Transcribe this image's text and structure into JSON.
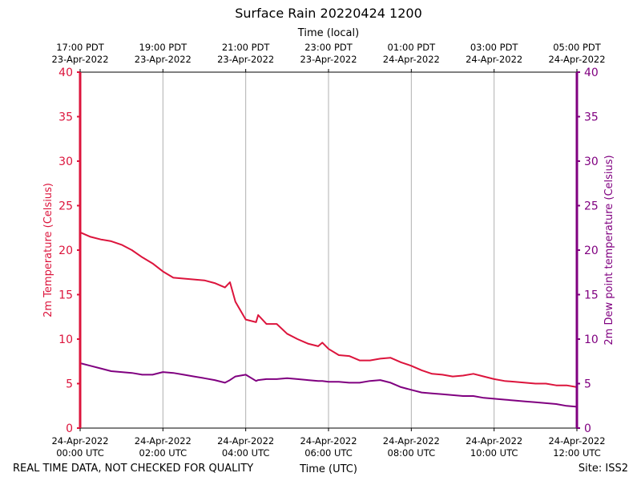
{
  "chart_data": {
    "type": "line",
    "title": "Surface Rain 20220424 1200",
    "top_xlabel": "Time (local)",
    "xlabel": "Time (UTC)",
    "ylabel_left": "2m Temperature (Celsius)",
    "ylabel_right": "2m Dew point temperature (Celsius)",
    "xlim_hours_utc": [
      0,
      12
    ],
    "ylim": [
      0,
      40
    ],
    "yticks": [
      0,
      5,
      10,
      15,
      20,
      25,
      30,
      35,
      40
    ],
    "grid": "vertical",
    "xticks_bottom": [
      {
        "h": 0,
        "l1": "24-Apr-2022",
        "l2": "00:00 UTC"
      },
      {
        "h": 2,
        "l1": "24-Apr-2022",
        "l2": "02:00 UTC"
      },
      {
        "h": 4,
        "l1": "24-Apr-2022",
        "l2": "04:00 UTC"
      },
      {
        "h": 6,
        "l1": "24-Apr-2022",
        "l2": "06:00 UTC"
      },
      {
        "h": 8,
        "l1": "24-Apr-2022",
        "l2": "08:00 UTC"
      },
      {
        "h": 10,
        "l1": "24-Apr-2022",
        "l2": "10:00 UTC"
      },
      {
        "h": 12,
        "l1": "24-Apr-2022",
        "l2": "12:00 UTC"
      }
    ],
    "xticks_top": [
      {
        "h": 0,
        "l1": "17:00 PDT",
        "l2": "23-Apr-2022"
      },
      {
        "h": 2,
        "l1": "19:00 PDT",
        "l2": "23-Apr-2022"
      },
      {
        "h": 4,
        "l1": "21:00 PDT",
        "l2": "23-Apr-2022"
      },
      {
        "h": 6,
        "l1": "23:00 PDT",
        "l2": "23-Apr-2022"
      },
      {
        "h": 8,
        "l1": "01:00 PDT",
        "l2": "24-Apr-2022"
      },
      {
        "h": 10,
        "l1": "03:00 PDT",
        "l2": "24-Apr-2022"
      },
      {
        "h": 12,
        "l1": "05:00 PDT",
        "l2": "24-Apr-2022"
      }
    ],
    "x_hours": [
      0,
      0.25,
      0.5,
      0.75,
      1,
      1.25,
      1.5,
      1.75,
      2,
      2.25,
      2.5,
      2.75,
      3,
      3.25,
      3.5,
      3.62,
      3.75,
      4,
      4.25,
      4.3,
      4.5,
      4.75,
      5,
      5.25,
      5.5,
      5.75,
      5.85,
      6,
      6.25,
      6.5,
      6.75,
      7,
      7.25,
      7.5,
      7.75,
      8,
      8.25,
      8.5,
      8.75,
      9,
      9.25,
      9.5,
      9.75,
      10,
      10.25,
      10.5,
      10.75,
      11,
      11.25,
      11.5,
      11.75,
      12
    ],
    "series": [
      {
        "name": "2m Temperature",
        "color": "#dc143c",
        "values": [
          22.0,
          21.5,
          21.2,
          21.0,
          20.6,
          20.0,
          19.2,
          18.5,
          17.6,
          16.9,
          16.8,
          16.7,
          16.6,
          16.3,
          15.8,
          16.4,
          14.2,
          12.2,
          11.9,
          12.7,
          11.7,
          11.7,
          10.6,
          10.0,
          9.5,
          9.2,
          9.6,
          8.9,
          8.2,
          8.1,
          7.6,
          7.6,
          7.8,
          7.9,
          7.4,
          7.0,
          6.5,
          6.1,
          6.0,
          5.8,
          5.9,
          6.1,
          5.8,
          5.5,
          5.3,
          5.2,
          5.1,
          5.0,
          5.0,
          4.8,
          4.8,
          4.6
        ]
      },
      {
        "name": "2m Dew point temperature",
        "color": "#800080",
        "values": [
          7.3,
          7.0,
          6.7,
          6.4,
          6.3,
          6.2,
          6.0,
          6.0,
          6.3,
          6.2,
          6.0,
          5.8,
          5.6,
          5.4,
          5.1,
          5.4,
          5.8,
          6.0,
          5.3,
          5.4,
          5.5,
          5.5,
          5.6,
          5.5,
          5.4,
          5.3,
          5.3,
          5.2,
          5.2,
          5.1,
          5.1,
          5.3,
          5.4,
          5.1,
          4.6,
          4.3,
          4.0,
          3.9,
          3.8,
          3.7,
          3.6,
          3.6,
          3.4,
          3.3,
          3.2,
          3.1,
          3.0,
          2.9,
          2.8,
          2.7,
          2.5,
          2.4
        ]
      }
    ],
    "footer_left": "REAL TIME DATA, NOT CHECKED FOR QUALITY",
    "footer_right": "Site: ISS2"
  }
}
